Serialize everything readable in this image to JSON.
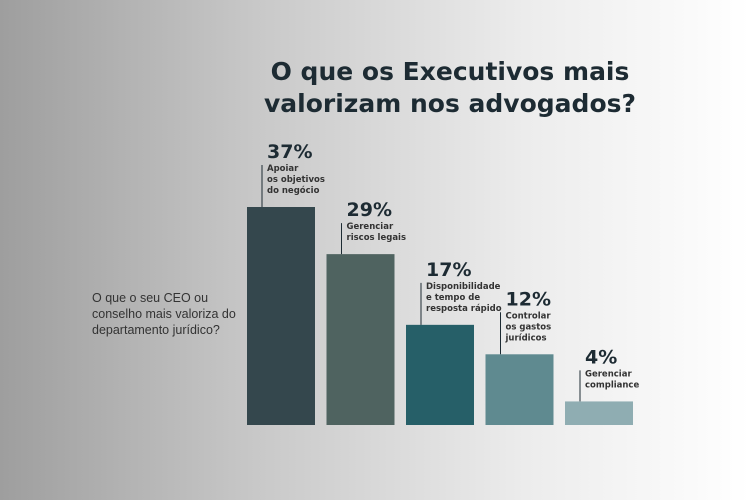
{
  "chart_data": {
    "type": "bar",
    "title": "O que os Executivos mais valorizam nos advogados?",
    "subtitle": "O que o seu CEO ou conselho mais valoriza do departamento jurídico?",
    "categories": [
      "Apoiar os objetivos do negócio",
      "Gerenciar riscos legais",
      "Disponibilidade e tempo de resposta rápido",
      "Controlar os gastos jurídicos",
      "Gerenciar compliance"
    ],
    "category_lines": [
      [
        "Apoiar",
        "os objetivos",
        "do negócio"
      ],
      [
        "Gerenciar",
        "riscos legais"
      ],
      [
        "Disponibilidade",
        "e tempo de",
        "resposta rápido"
      ],
      [
        "Controlar",
        "os gastos",
        "jurídicos"
      ],
      [
        "Gerenciar",
        "compliance"
      ]
    ],
    "values": [
      37,
      29,
      17,
      12,
      4
    ],
    "value_labels": [
      "37%",
      "29%",
      "17%",
      "12%",
      "4%"
    ],
    "colors": [
      "#34474d",
      "#4f6360",
      "#265f68",
      "#5f8a90",
      "#8fadb2"
    ],
    "ylim": [
      0,
      37
    ],
    "grid": false,
    "legend": "none"
  }
}
